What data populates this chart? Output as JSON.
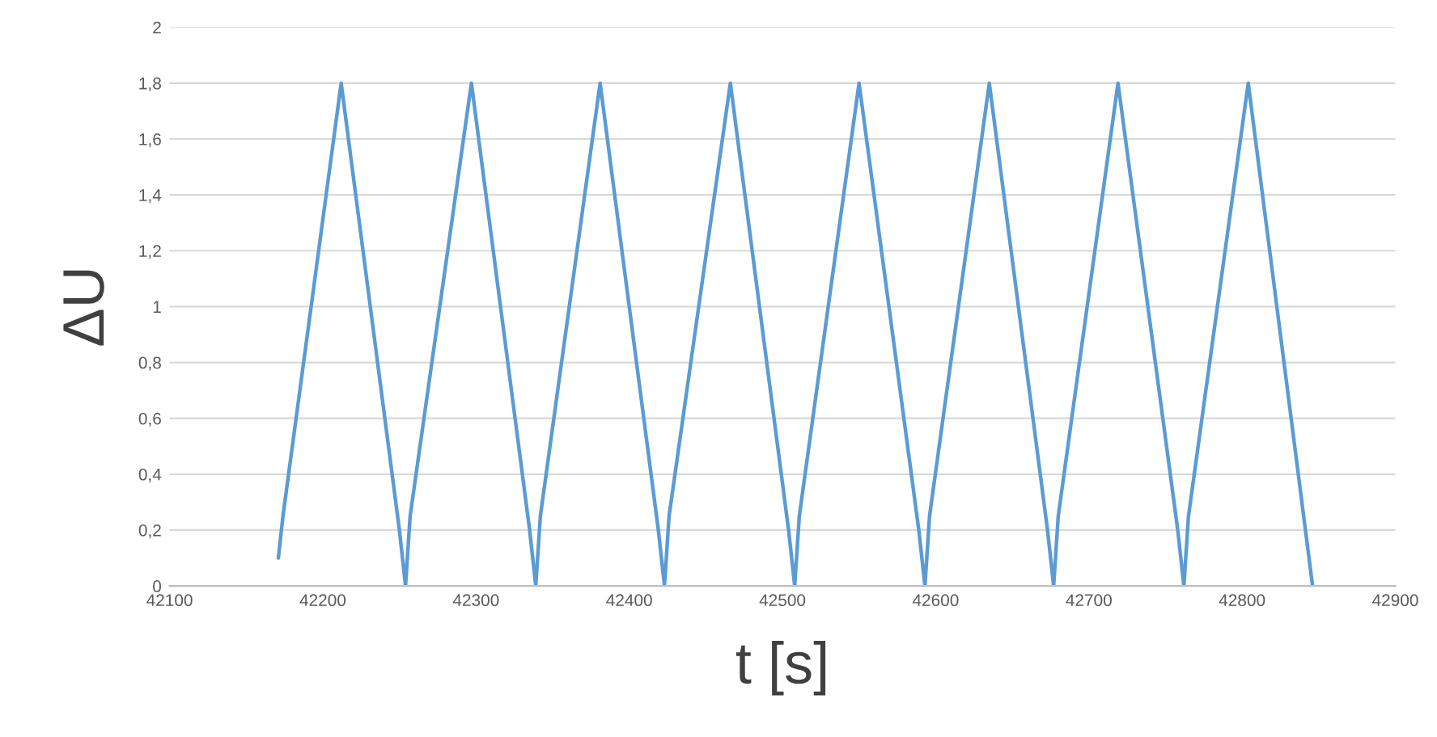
{
  "chart_data": {
    "type": "line",
    "xlabel": "t [s]",
    "ylabel": "ΔU",
    "series": [
      {
        "color": "#5b9bd5",
        "x": [
          42171,
          42174,
          42212,
          42250,
          42254,
          42257,
          42297,
          42335,
          42339,
          42342,
          42381,
          42419,
          42423,
          42426,
          42466,
          42504,
          42508,
          42511,
          42550,
          42589,
          42593,
          42596,
          42635,
          42673,
          42677,
          42680,
          42719,
          42758,
          42762,
          42765,
          42804,
          42846
        ],
        "values": [
          0.1,
          0.25,
          1.8,
          0.2,
          0,
          0.25,
          1.8,
          0.2,
          0,
          0.25,
          1.8,
          0.2,
          0,
          0.25,
          1.8,
          0.2,
          0,
          0.25,
          1.8,
          0.2,
          0,
          0.25,
          1.8,
          0.2,
          0,
          0.25,
          1.8,
          0.2,
          0,
          0.25,
          1.8,
          0
        ]
      }
    ],
    "xlim": [
      42100,
      42900
    ],
    "xticks": [
      42100,
      42200,
      42300,
      42400,
      42500,
      42600,
      42700,
      42800,
      42900
    ],
    "ylim": [
      0,
      2
    ],
    "yticks": [
      0,
      {
        "value": 0.2,
        "label": "0,2"
      },
      {
        "value": 0.4,
        "label": "0,4"
      },
      {
        "value": 0.6,
        "label": "0,6"
      },
      {
        "value": 0.8,
        "label": "0,8"
      },
      1,
      {
        "value": 1.2,
        "label": "1,2"
      },
      {
        "value": 1.4,
        "label": "1,4"
      },
      {
        "value": 1.6,
        "label": "1,6"
      },
      {
        "value": 1.8,
        "label": "1,8"
      },
      2
    ],
    "grid": "y",
    "legend": false,
    "line_style": "solid",
    "marker": "none"
  }
}
